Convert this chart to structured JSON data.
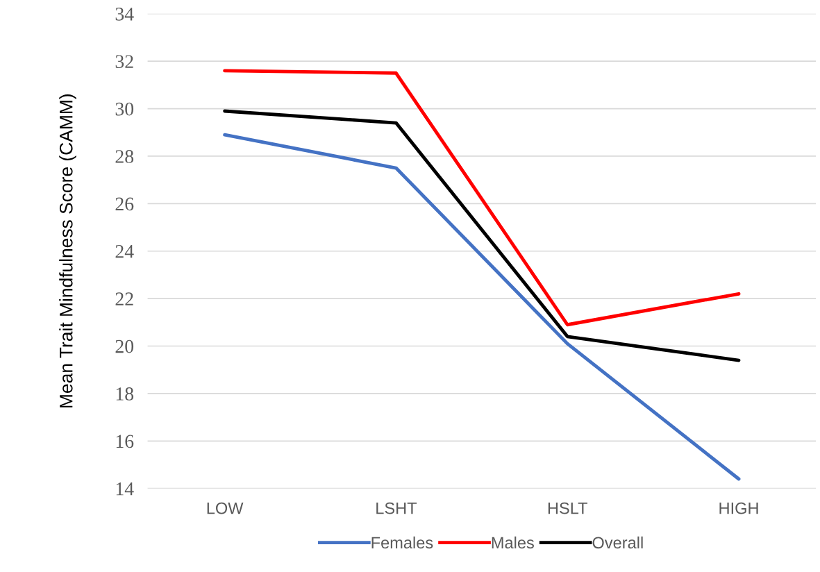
{
  "chart_data": {
    "type": "line",
    "ylabel": "Mean Trait Mindfulness Score (CAMM)",
    "categories": [
      "LOW",
      "LSHT",
      "HSLT",
      "HIGH"
    ],
    "series": [
      {
        "name": "Females",
        "color": "#4472c4",
        "values": [
          28.9,
          27.5,
          20.1,
          14.4
        ]
      },
      {
        "name": "Males",
        "color": "#ff0000",
        "values": [
          31.6,
          31.5,
          20.9,
          22.2
        ]
      },
      {
        "name": "Overall",
        "color": "#000000",
        "values": [
          29.9,
          29.4,
          20.4,
          19.4
        ]
      }
    ],
    "ylim": [
      14,
      34
    ],
    "yticks": [
      14,
      16,
      18,
      20,
      22,
      24,
      26,
      28,
      30,
      32,
      34
    ],
    "grid": "y",
    "legend": "bottom",
    "marker": "none",
    "line_style": "solid"
  }
}
